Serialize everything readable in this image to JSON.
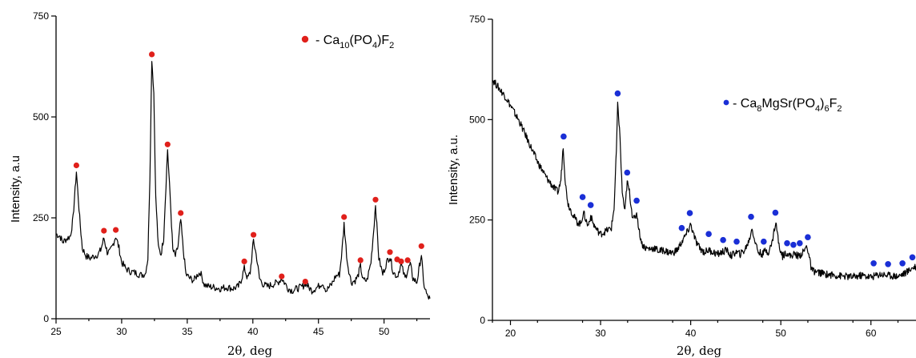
{
  "chart_data": [
    {
      "type": "line",
      "ylabel": "Intensity, a.u",
      "xlabel": "2θ, deg",
      "xlim": [
        25,
        53.5
      ],
      "ylim": [
        0,
        750
      ],
      "x_ticks": [
        25,
        30,
        35,
        40,
        45,
        50
      ],
      "y_ticks": [
        0,
        250,
        500,
        750
      ],
      "legend": {
        "marker_color": "#e0201b",
        "text": "- Ca10(PO4)F2",
        "position": "top-right"
      },
      "series": [
        {
          "line_color": "#000000",
          "points": [
            [
              25,
              210
            ],
            [
              25.3,
              205
            ],
            [
              25.5,
              190
            ],
            [
              25.8,
              198
            ],
            [
              26.1,
              205
            ],
            [
              26.3,
              250
            ],
            [
              26.55,
              365
            ],
            [
              26.8,
              250
            ],
            [
              27.0,
              175
            ],
            [
              27.3,
              155
            ],
            [
              27.6,
              150
            ],
            [
              27.9,
              155
            ],
            [
              28.2,
              160
            ],
            [
              28.4,
              170
            ],
            [
              28.65,
              200
            ],
            [
              28.9,
              165
            ],
            [
              29.1,
              165
            ],
            [
              29.3,
              180
            ],
            [
              29.55,
              205
            ],
            [
              29.8,
              175
            ],
            [
              30.0,
              140
            ],
            [
              30.3,
              125
            ],
            [
              30.6,
              118
            ],
            [
              30.9,
              115
            ],
            [
              31.2,
              112
            ],
            [
              31.5,
              108
            ],
            [
              31.8,
              112
            ],
            [
              32.0,
              150
            ],
            [
              32.15,
              350
            ],
            [
              32.3,
              645
            ],
            [
              32.45,
              560
            ],
            [
              32.6,
              300
            ],
            [
              32.8,
              175
            ],
            [
              33.0,
              160
            ],
            [
              33.2,
              200
            ],
            [
              33.5,
              420
            ],
            [
              33.7,
              300
            ],
            [
              33.9,
              170
            ],
            [
              34.1,
              155
            ],
            [
              34.3,
              180
            ],
            [
              34.5,
              245
            ],
            [
              34.7,
              170
            ],
            [
              34.9,
              110
            ],
            [
              35.2,
              100
            ],
            [
              35.5,
              95
            ],
            [
              35.8,
              110
            ],
            [
              36.0,
              115
            ],
            [
              36.3,
              85
            ],
            [
              36.6,
              80
            ],
            [
              37.0,
              78
            ],
            [
              37.5,
              75
            ],
            [
              38.0,
              78
            ],
            [
              38.5,
              75
            ],
            [
              38.9,
              80
            ],
            [
              39.1,
              95
            ],
            [
              39.35,
              125
            ],
            [
              39.6,
              100
            ],
            [
              39.8,
              115
            ],
            [
              40.05,
              195
            ],
            [
              40.3,
              150
            ],
            [
              40.5,
              100
            ],
            [
              40.8,
              85
            ],
            [
              41.1,
              80
            ],
            [
              41.5,
              85
            ],
            [
              41.9,
              90
            ],
            [
              42.2,
              100
            ],
            [
              42.4,
              90
            ],
            [
              42.7,
              75
            ],
            [
              43.0,
              70
            ],
            [
              43.4,
              75
            ],
            [
              43.8,
              80
            ],
            [
              44.0,
              88
            ],
            [
              44.2,
              80
            ],
            [
              44.5,
              70
            ],
            [
              45.0,
              80
            ],
            [
              45.3,
              90
            ],
            [
              45.6,
              70
            ],
            [
              46.0,
              85
            ],
            [
              46.3,
              105
            ],
            [
              46.6,
              110
            ],
            [
              46.8,
              170
            ],
            [
              46.95,
              235
            ],
            [
              47.2,
              140
            ],
            [
              47.5,
              90
            ],
            [
              47.8,
              95
            ],
            [
              48.0,
              105
            ],
            [
              48.2,
              130
            ],
            [
              48.4,
              95
            ],
            [
              48.7,
              95
            ],
            [
              49.0,
              140
            ],
            [
              49.2,
              215
            ],
            [
              49.35,
              285
            ],
            [
              49.6,
              150
            ],
            [
              49.9,
              110
            ],
            [
              50.2,
              140
            ],
            [
              50.45,
              155
            ],
            [
              50.7,
              115
            ],
            [
              51.0,
              105
            ],
            [
              51.3,
              135
            ],
            [
              51.6,
              100
            ],
            [
              51.8,
              120
            ],
            [
              52.0,
              135
            ],
            [
              52.2,
              100
            ],
            [
              52.5,
              90
            ],
            [
              52.7,
              130
            ],
            [
              52.85,
              160
            ],
            [
              53.0,
              90
            ],
            [
              53.3,
              55
            ],
            [
              53.5,
              50
            ]
          ]
        }
      ],
      "markers": {
        "color": "#e0201b",
        "points": [
          [
            26.55,
            380
          ],
          [
            28.65,
            218
          ],
          [
            29.55,
            220
          ],
          [
            32.3,
            655
          ],
          [
            33.5,
            432
          ],
          [
            34.5,
            262
          ],
          [
            39.35,
            142
          ],
          [
            40.05,
            208
          ],
          [
            42.2,
            105
          ],
          [
            44.0,
            92
          ],
          [
            46.95,
            252
          ],
          [
            48.2,
            145
          ],
          [
            49.35,
            295
          ],
          [
            50.45,
            165
          ],
          [
            51.0,
            147
          ],
          [
            51.3,
            142
          ],
          [
            51.8,
            145
          ],
          [
            52.85,
            180
          ]
        ]
      }
    },
    {
      "type": "line",
      "ylabel": "Intensity, a.u.",
      "xlabel": "2θ, deg",
      "xlim": [
        18,
        65
      ],
      "ylim": [
        0,
        750
      ],
      "x_ticks": [
        20,
        30,
        40,
        50,
        60
      ],
      "y_ticks": [
        0,
        250,
        500,
        750
      ],
      "legend": {
        "marker_color": "#1a2fd6",
        "text": "- Ca8MgSr(PO4)6F2",
        "position": "top-right"
      },
      "series": [
        {
          "line_color": "#000000",
          "points": [
            [
              18,
              600
            ],
            [
              18.5,
              585
            ],
            [
              19,
              570
            ],
            [
              19.5,
              555
            ],
            [
              20,
              535
            ],
            [
              20.5,
              515
            ],
            [
              21,
              495
            ],
            [
              21.5,
              470
            ],
            [
              22,
              445
            ],
            [
              22.5,
              420
            ],
            [
              23,
              395
            ],
            [
              23.5,
              375
            ],
            [
              24,
              355
            ],
            [
              24.5,
              340
            ],
            [
              25,
              325
            ],
            [
              25.3,
              320
            ],
            [
              25.6,
              350
            ],
            [
              25.85,
              435
            ],
            [
              26.1,
              340
            ],
            [
              26.4,
              290
            ],
            [
              26.7,
              275
            ],
            [
              27.0,
              260
            ],
            [
              27.4,
              245
            ],
            [
              27.8,
              240
            ],
            [
              28.1,
              270
            ],
            [
              28.3,
              255
            ],
            [
              28.6,
              235
            ],
            [
              28.9,
              260
            ],
            [
              29.2,
              240
            ],
            [
              29.6,
              225
            ],
            [
              30.0,
              215
            ],
            [
              30.4,
              220
            ],
            [
              30.8,
              225
            ],
            [
              31.2,
              230
            ],
            [
              31.5,
              280
            ],
            [
              31.75,
              420
            ],
            [
              31.9,
              535
            ],
            [
              32.1,
              480
            ],
            [
              32.4,
              320
            ],
            [
              32.7,
              270
            ],
            [
              32.95,
              345
            ],
            [
              33.2,
              320
            ],
            [
              33.5,
              265
            ],
            [
              33.8,
              250
            ],
            [
              34.0,
              270
            ],
            [
              34.3,
              220
            ],
            [
              34.6,
              190
            ],
            [
              35.0,
              180
            ],
            [
              35.5,
              178
            ],
            [
              36.0,
              180
            ],
            [
              36.5,
              172
            ],
            [
              37.0,
              175
            ],
            [
              37.5,
              170
            ],
            [
              38.0,
              168
            ],
            [
              38.5,
              175
            ],
            [
              39.0,
              195
            ],
            [
              39.4,
              210
            ],
            [
              39.8,
              228
            ],
            [
              40.0,
              240
            ],
            [
              40.3,
              215
            ],
            [
              40.6,
              195
            ],
            [
              41.0,
              180
            ],
            [
              41.5,
              170
            ],
            [
              42.0,
              175
            ],
            [
              42.5,
              170
            ],
            [
              43.0,
              165
            ],
            [
              43.5,
              170
            ],
            [
              44.0,
              175
            ],
            [
              44.5,
              160
            ],
            [
              45.0,
              170
            ],
            [
              45.5,
              165
            ],
            [
              46.0,
              175
            ],
            [
              46.5,
              200
            ],
            [
              46.8,
              230
            ],
            [
              47.1,
              200
            ],
            [
              47.5,
              170
            ],
            [
              48.0,
              165
            ],
            [
              48.3,
              175
            ],
            [
              48.6,
              170
            ],
            [
              49.0,
              190
            ],
            [
              49.3,
              230
            ],
            [
              49.5,
              240
            ],
            [
              49.8,
              185
            ],
            [
              50.2,
              160
            ],
            [
              50.6,
              170
            ],
            [
              51.0,
              160
            ],
            [
              51.5,
              165
            ],
            [
              52.0,
              160
            ],
            [
              52.5,
              170
            ],
            [
              52.9,
              185
            ],
            [
              53.1,
              165
            ],
            [
              53.4,
              125
            ],
            [
              54,
              120
            ],
            [
              55,
              115
            ],
            [
              56,
              112
            ],
            [
              57,
              110
            ],
            [
              58,
              108
            ],
            [
              59,
              112
            ],
            [
              60,
              108
            ],
            [
              61,
              115
            ],
            [
              62,
              112
            ],
            [
              63,
              110
            ],
            [
              64,
              120
            ],
            [
              64.5,
              130
            ],
            [
              65,
              135
            ]
          ]
        }
      ],
      "markers": {
        "color": "#1a2fd6",
        "points": [
          [
            25.9,
            458
          ],
          [
            28.0,
            307
          ],
          [
            28.9,
            287
          ],
          [
            31.9,
            565
          ],
          [
            32.95,
            368
          ],
          [
            34.0,
            298
          ],
          [
            39.0,
            230
          ],
          [
            39.9,
            267
          ],
          [
            42.0,
            215
          ],
          [
            43.6,
            200
          ],
          [
            45.1,
            196
          ],
          [
            46.7,
            258
          ],
          [
            48.1,
            196
          ],
          [
            49.4,
            268
          ],
          [
            50.7,
            192
          ],
          [
            51.4,
            188
          ],
          [
            52.1,
            192
          ],
          [
            53.0,
            207
          ],
          [
            60.3,
            142
          ],
          [
            61.9,
            140
          ],
          [
            63.5,
            142
          ],
          [
            64.6,
            157
          ]
        ]
      }
    }
  ]
}
